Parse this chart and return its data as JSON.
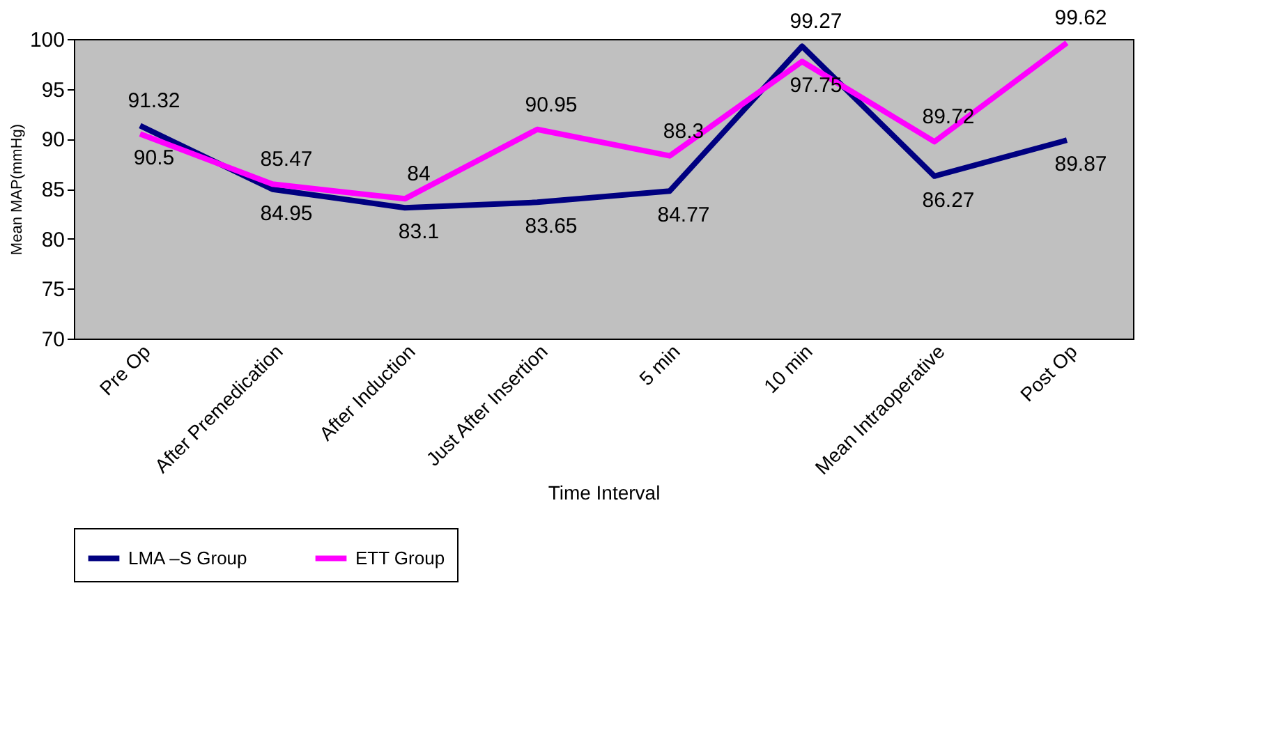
{
  "chart_data": {
    "type": "line",
    "xlabel": "Time Interval",
    "ylabel": "Mean MAP(mmHg)",
    "categories": [
      "Pre Op",
      "After Premedication",
      "After Induction",
      "Just After Insertion",
      "5 min",
      "10 min",
      "Mean Intraoperative",
      "Post Op"
    ],
    "series": [
      {
        "name": "LMA –S Group",
        "color": "#000080",
        "values": [
          91.32,
          84.95,
          83.1,
          83.65,
          84.77,
          99.27,
          86.27,
          89.87
        ]
      },
      {
        "name": "ETT Group",
        "color": "#ff00ff",
        "values": [
          90.5,
          85.47,
          84,
          90.95,
          88.3,
          97.75,
          89.72,
          99.62
        ]
      }
    ],
    "ylim": [
      70,
      100
    ],
    "yticks": [
      70,
      75,
      80,
      85,
      90,
      95,
      100
    ],
    "data_labels": true,
    "grid": false,
    "legend": "bottom",
    "marker": "none",
    "line_style": "solid"
  }
}
